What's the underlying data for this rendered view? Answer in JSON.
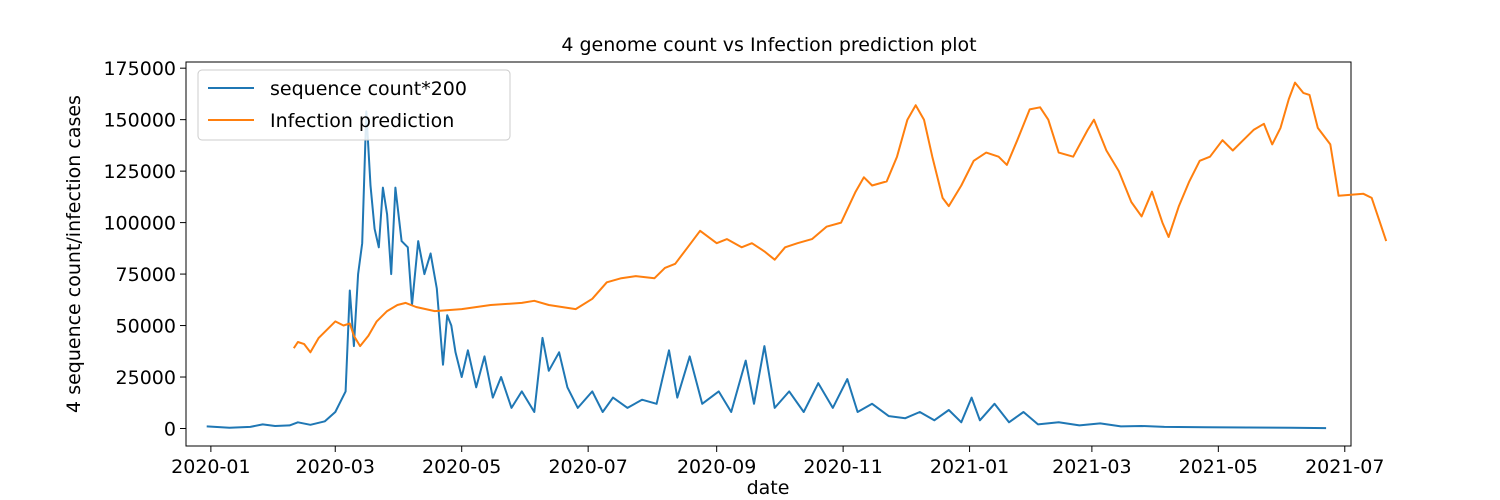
{
  "chart_data": {
    "type": "line",
    "title": "4 genome count vs Infection prediction plot",
    "xlabel": "date",
    "ylabel": "4 sequence count/infection cases",
    "xlim": [
      "2019-12-20",
      "2021-07-04"
    ],
    "ylim": [
      -8500,
      178000
    ],
    "xticks": [
      "2020-01",
      "2020-03",
      "2020-05",
      "2020-07",
      "2020-09",
      "2020-11",
      "2021-01",
      "2021-03",
      "2021-05",
      "2021-07"
    ],
    "yticks": [
      0,
      25000,
      50000,
      75000,
      100000,
      125000,
      150000,
      175000
    ],
    "ytick_labels": [
      "0",
      "25000",
      "50000",
      "75000",
      "100000",
      "125000",
      "150000",
      "175000"
    ],
    "legend_position": "upper-left",
    "grid": false,
    "series": [
      {
        "name": "sequence count*200",
        "color": "#1f77b4",
        "points": [
          [
            "2019-12-30",
            1000
          ],
          [
            "2020-01-10",
            400
          ],
          [
            "2020-01-20",
            800
          ],
          [
            "2020-01-26",
            2000
          ],
          [
            "2020-02-01",
            1200
          ],
          [
            "2020-02-08",
            1500
          ],
          [
            "2020-02-12",
            3000
          ],
          [
            "2020-02-18",
            1800
          ],
          [
            "2020-02-25",
            3500
          ],
          [
            "2020-03-01",
            8000
          ],
          [
            "2020-03-03",
            12000
          ],
          [
            "2020-03-06",
            18000
          ],
          [
            "2020-03-08",
            67000
          ],
          [
            "2020-03-10",
            40000
          ],
          [
            "2020-03-12",
            75000
          ],
          [
            "2020-03-14",
            90000
          ],
          [
            "2020-03-16",
            154000
          ],
          [
            "2020-03-18",
            118000
          ],
          [
            "2020-03-20",
            97000
          ],
          [
            "2020-03-22",
            88000
          ],
          [
            "2020-03-24",
            117000
          ],
          [
            "2020-03-26",
            104000
          ],
          [
            "2020-03-28",
            75000
          ],
          [
            "2020-03-30",
            117000
          ],
          [
            "2020-04-02",
            91000
          ],
          [
            "2020-04-05",
            88000
          ],
          [
            "2020-04-07",
            60000
          ],
          [
            "2020-04-10",
            91000
          ],
          [
            "2020-04-13",
            75000
          ],
          [
            "2020-04-16",
            85000
          ],
          [
            "2020-04-19",
            68000
          ],
          [
            "2020-04-22",
            31000
          ],
          [
            "2020-04-24",
            55000
          ],
          [
            "2020-04-26",
            50000
          ],
          [
            "2020-04-28",
            37000
          ],
          [
            "2020-05-01",
            25000
          ],
          [
            "2020-05-04",
            38000
          ],
          [
            "2020-05-08",
            20000
          ],
          [
            "2020-05-12",
            35000
          ],
          [
            "2020-05-16",
            15000
          ],
          [
            "2020-05-20",
            25000
          ],
          [
            "2020-05-25",
            10000
          ],
          [
            "2020-05-30",
            18000
          ],
          [
            "2020-06-05",
            8000
          ],
          [
            "2020-06-09",
            44000
          ],
          [
            "2020-06-12",
            28000
          ],
          [
            "2020-06-17",
            37000
          ],
          [
            "2020-06-21",
            20000
          ],
          [
            "2020-06-26",
            10000
          ],
          [
            "2020-07-03",
            18000
          ],
          [
            "2020-07-08",
            8000
          ],
          [
            "2020-07-13",
            15000
          ],
          [
            "2020-07-20",
            10000
          ],
          [
            "2020-07-27",
            14000
          ],
          [
            "2020-08-03",
            12000
          ],
          [
            "2020-08-09",
            38000
          ],
          [
            "2020-08-13",
            15000
          ],
          [
            "2020-08-19",
            35000
          ],
          [
            "2020-08-25",
            12000
          ],
          [
            "2020-09-02",
            18000
          ],
          [
            "2020-09-08",
            8000
          ],
          [
            "2020-09-15",
            33000
          ],
          [
            "2020-09-19",
            12000
          ],
          [
            "2020-09-24",
            40000
          ],
          [
            "2020-09-29",
            10000
          ],
          [
            "2020-10-06",
            18000
          ],
          [
            "2020-10-13",
            8000
          ],
          [
            "2020-10-20",
            22000
          ],
          [
            "2020-10-27",
            10000
          ],
          [
            "2020-11-03",
            24000
          ],
          [
            "2020-11-08",
            8000
          ],
          [
            "2020-11-15",
            12000
          ],
          [
            "2020-11-23",
            6000
          ],
          [
            "2020-12-01",
            5000
          ],
          [
            "2020-12-08",
            8000
          ],
          [
            "2020-12-15",
            4000
          ],
          [
            "2020-12-22",
            9000
          ],
          [
            "2020-12-28",
            3000
          ],
          [
            "2021-01-02",
            15000
          ],
          [
            "2021-01-06",
            4000
          ],
          [
            "2021-01-13",
            12000
          ],
          [
            "2021-01-20",
            3000
          ],
          [
            "2021-01-27",
            8000
          ],
          [
            "2021-02-03",
            2000
          ],
          [
            "2021-02-13",
            3000
          ],
          [
            "2021-02-23",
            1500
          ],
          [
            "2021-03-05",
            2500
          ],
          [
            "2021-03-15",
            1000
          ],
          [
            "2021-03-25",
            1200
          ],
          [
            "2021-04-05",
            800
          ],
          [
            "2021-04-25",
            600
          ],
          [
            "2021-05-15",
            500
          ],
          [
            "2021-06-05",
            400
          ],
          [
            "2021-06-22",
            200
          ]
        ]
      },
      {
        "name": "Infection prediction",
        "color": "#ff7f0e",
        "points": [
          [
            "2020-02-10",
            39000
          ],
          [
            "2020-02-12",
            42000
          ],
          [
            "2020-02-15",
            41000
          ],
          [
            "2020-02-18",
            37000
          ],
          [
            "2020-02-22",
            44000
          ],
          [
            "2020-02-26",
            48000
          ],
          [
            "2020-03-01",
            52000
          ],
          [
            "2020-03-05",
            50000
          ],
          [
            "2020-03-08",
            51000
          ],
          [
            "2020-03-10",
            45000
          ],
          [
            "2020-03-13",
            40000
          ],
          [
            "2020-03-17",
            45000
          ],
          [
            "2020-03-21",
            52000
          ],
          [
            "2020-03-26",
            57000
          ],
          [
            "2020-03-31",
            60000
          ],
          [
            "2020-04-04",
            61000
          ],
          [
            "2020-04-09",
            59000
          ],
          [
            "2020-04-18",
            57000
          ],
          [
            "2020-05-01",
            58000
          ],
          [
            "2020-05-15",
            60000
          ],
          [
            "2020-05-30",
            61000
          ],
          [
            "2020-06-05",
            62000
          ],
          [
            "2020-06-12",
            60000
          ],
          [
            "2020-06-25",
            58000
          ],
          [
            "2020-07-03",
            63000
          ],
          [
            "2020-07-10",
            71000
          ],
          [
            "2020-07-17",
            73000
          ],
          [
            "2020-07-24",
            74000
          ],
          [
            "2020-08-02",
            73000
          ],
          [
            "2020-08-07",
            78000
          ],
          [
            "2020-08-12",
            80000
          ],
          [
            "2020-08-18",
            88000
          ],
          [
            "2020-08-24",
            96000
          ],
          [
            "2020-09-01",
            90000
          ],
          [
            "2020-09-06",
            92000
          ],
          [
            "2020-09-13",
            88000
          ],
          [
            "2020-09-18",
            90000
          ],
          [
            "2020-09-24",
            86000
          ],
          [
            "2020-09-29",
            82000
          ],
          [
            "2020-10-04",
            88000
          ],
          [
            "2020-10-10",
            90000
          ],
          [
            "2020-10-17",
            92000
          ],
          [
            "2020-10-24",
            98000
          ],
          [
            "2020-10-31",
            100000
          ],
          [
            "2020-11-07",
            115000
          ],
          [
            "2020-11-11",
            122000
          ],
          [
            "2020-11-15",
            118000
          ],
          [
            "2020-11-22",
            120000
          ],
          [
            "2020-11-27",
            132000
          ],
          [
            "2020-12-02",
            150000
          ],
          [
            "2020-12-06",
            157000
          ],
          [
            "2020-12-10",
            150000
          ],
          [
            "2020-12-14",
            132000
          ],
          [
            "2020-12-19",
            112000
          ],
          [
            "2020-12-22",
            108000
          ],
          [
            "2020-12-28",
            118000
          ],
          [
            "2021-01-03",
            130000
          ],
          [
            "2021-01-09",
            134000
          ],
          [
            "2021-01-15",
            132000
          ],
          [
            "2021-01-19",
            128000
          ],
          [
            "2021-01-24",
            140000
          ],
          [
            "2021-01-30",
            155000
          ],
          [
            "2021-02-04",
            156000
          ],
          [
            "2021-02-08",
            150000
          ],
          [
            "2021-02-13",
            134000
          ],
          [
            "2021-02-20",
            132000
          ],
          [
            "2021-02-27",
            145000
          ],
          [
            "2021-03-02",
            150000
          ],
          [
            "2021-03-08",
            135000
          ],
          [
            "2021-03-14",
            125000
          ],
          [
            "2021-03-20",
            110000
          ],
          [
            "2021-03-25",
            103000
          ],
          [
            "2021-03-30",
            115000
          ],
          [
            "2021-04-04",
            100000
          ],
          [
            "2021-04-07",
            93000
          ],
          [
            "2021-04-12",
            108000
          ],
          [
            "2021-04-17",
            120000
          ],
          [
            "2021-04-22",
            130000
          ],
          [
            "2021-04-27",
            132000
          ],
          [
            "2021-05-03",
            140000
          ],
          [
            "2021-05-08",
            135000
          ],
          [
            "2021-05-13",
            140000
          ],
          [
            "2021-05-18",
            145000
          ],
          [
            "2021-05-23",
            148000
          ],
          [
            "2021-05-27",
            138000
          ],
          [
            "2021-05-31",
            146000
          ],
          [
            "2021-06-04",
            160000
          ],
          [
            "2021-06-07",
            168000
          ],
          [
            "2021-06-11",
            163000
          ],
          [
            "2021-06-14",
            162000
          ],
          [
            "2021-06-18",
            146000
          ],
          [
            "2021-06-24",
            138000
          ],
          [
            "2021-06-28",
            113000
          ],
          [
            "2021-07-10",
            114000
          ],
          [
            "2021-07-14",
            112000
          ],
          [
            "2021-07-18",
            100000
          ],
          [
            "2021-07-21",
            91000
          ]
        ]
      }
    ]
  }
}
